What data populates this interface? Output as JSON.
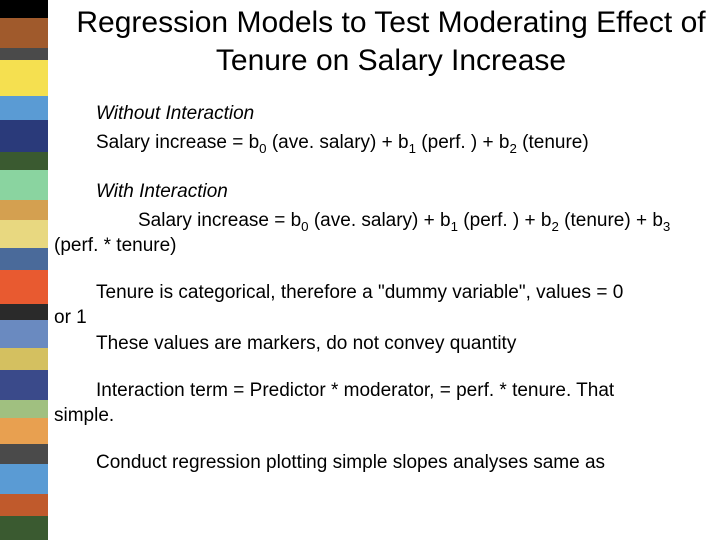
{
  "slide": {
    "title": "Regression Models to Test Moderating Effect of Tenure on Salary Increase",
    "section1_heading": "Without Interaction",
    "eq1_pre": "Salary increase = b",
    "eq1_s0": "0",
    "eq1_mid1": " (ave. salary) + b",
    "eq1_s1": "1",
    "eq1_mid2": " (perf. ) + b",
    "eq1_s2": "2",
    "eq1_end": " (tenure)",
    "section2_heading": "With Interaction",
    "eq2_pre": "Salary increase = b",
    "eq2_s0": "0",
    "eq2_mid1": " (ave. salary) + b",
    "eq2_s1": "1",
    "eq2_mid2": " (perf. ) + b",
    "eq2_s2": "2",
    "eq2_mid3": " (tenure) + b",
    "eq2_s3": "3",
    "eq2_line2": "(perf. * tenure)",
    "note1_line1": "Tenure is categorical, therefore a \"dummy variable\", values = 0",
    "note1_line2": "or 1",
    "note2": "These values are markers, do not convey quantity",
    "note3_line1": "Interaction term = Predictor * moderator, = perf. * tenure.  That",
    "note3_line2": "simple.",
    "note4": "Conduct regression  plotting  simple slopes analyses same as"
  },
  "sidebar_blocks": [
    {
      "h": 18,
      "c": "#000000"
    },
    {
      "h": 30,
      "c": "#a05a2c"
    },
    {
      "h": 12,
      "c": "#4a4a4a"
    },
    {
      "h": 36,
      "c": "#f5e050"
    },
    {
      "h": 24,
      "c": "#5a9bd4"
    },
    {
      "h": 32,
      "c": "#2a3a7a"
    },
    {
      "h": 18,
      "c": "#3a5a30"
    },
    {
      "h": 30,
      "c": "#8ad4a0"
    },
    {
      "h": 20,
      "c": "#d4a050"
    },
    {
      "h": 28,
      "c": "#e8d880"
    },
    {
      "h": 22,
      "c": "#4a6a9a"
    },
    {
      "h": 34,
      "c": "#e85a30"
    },
    {
      "h": 16,
      "c": "#2a2a2a"
    },
    {
      "h": 28,
      "c": "#6a8ac0"
    },
    {
      "h": 22,
      "c": "#d4c060"
    },
    {
      "h": 30,
      "c": "#3a4a8a"
    },
    {
      "h": 18,
      "c": "#a0c080"
    },
    {
      "h": 26,
      "c": "#e8a050"
    },
    {
      "h": 20,
      "c": "#4a4a4a"
    },
    {
      "h": 30,
      "c": "#5a9bd4"
    },
    {
      "h": 22,
      "c": "#c05a2c"
    },
    {
      "h": 24,
      "c": "#3a5a30"
    }
  ]
}
